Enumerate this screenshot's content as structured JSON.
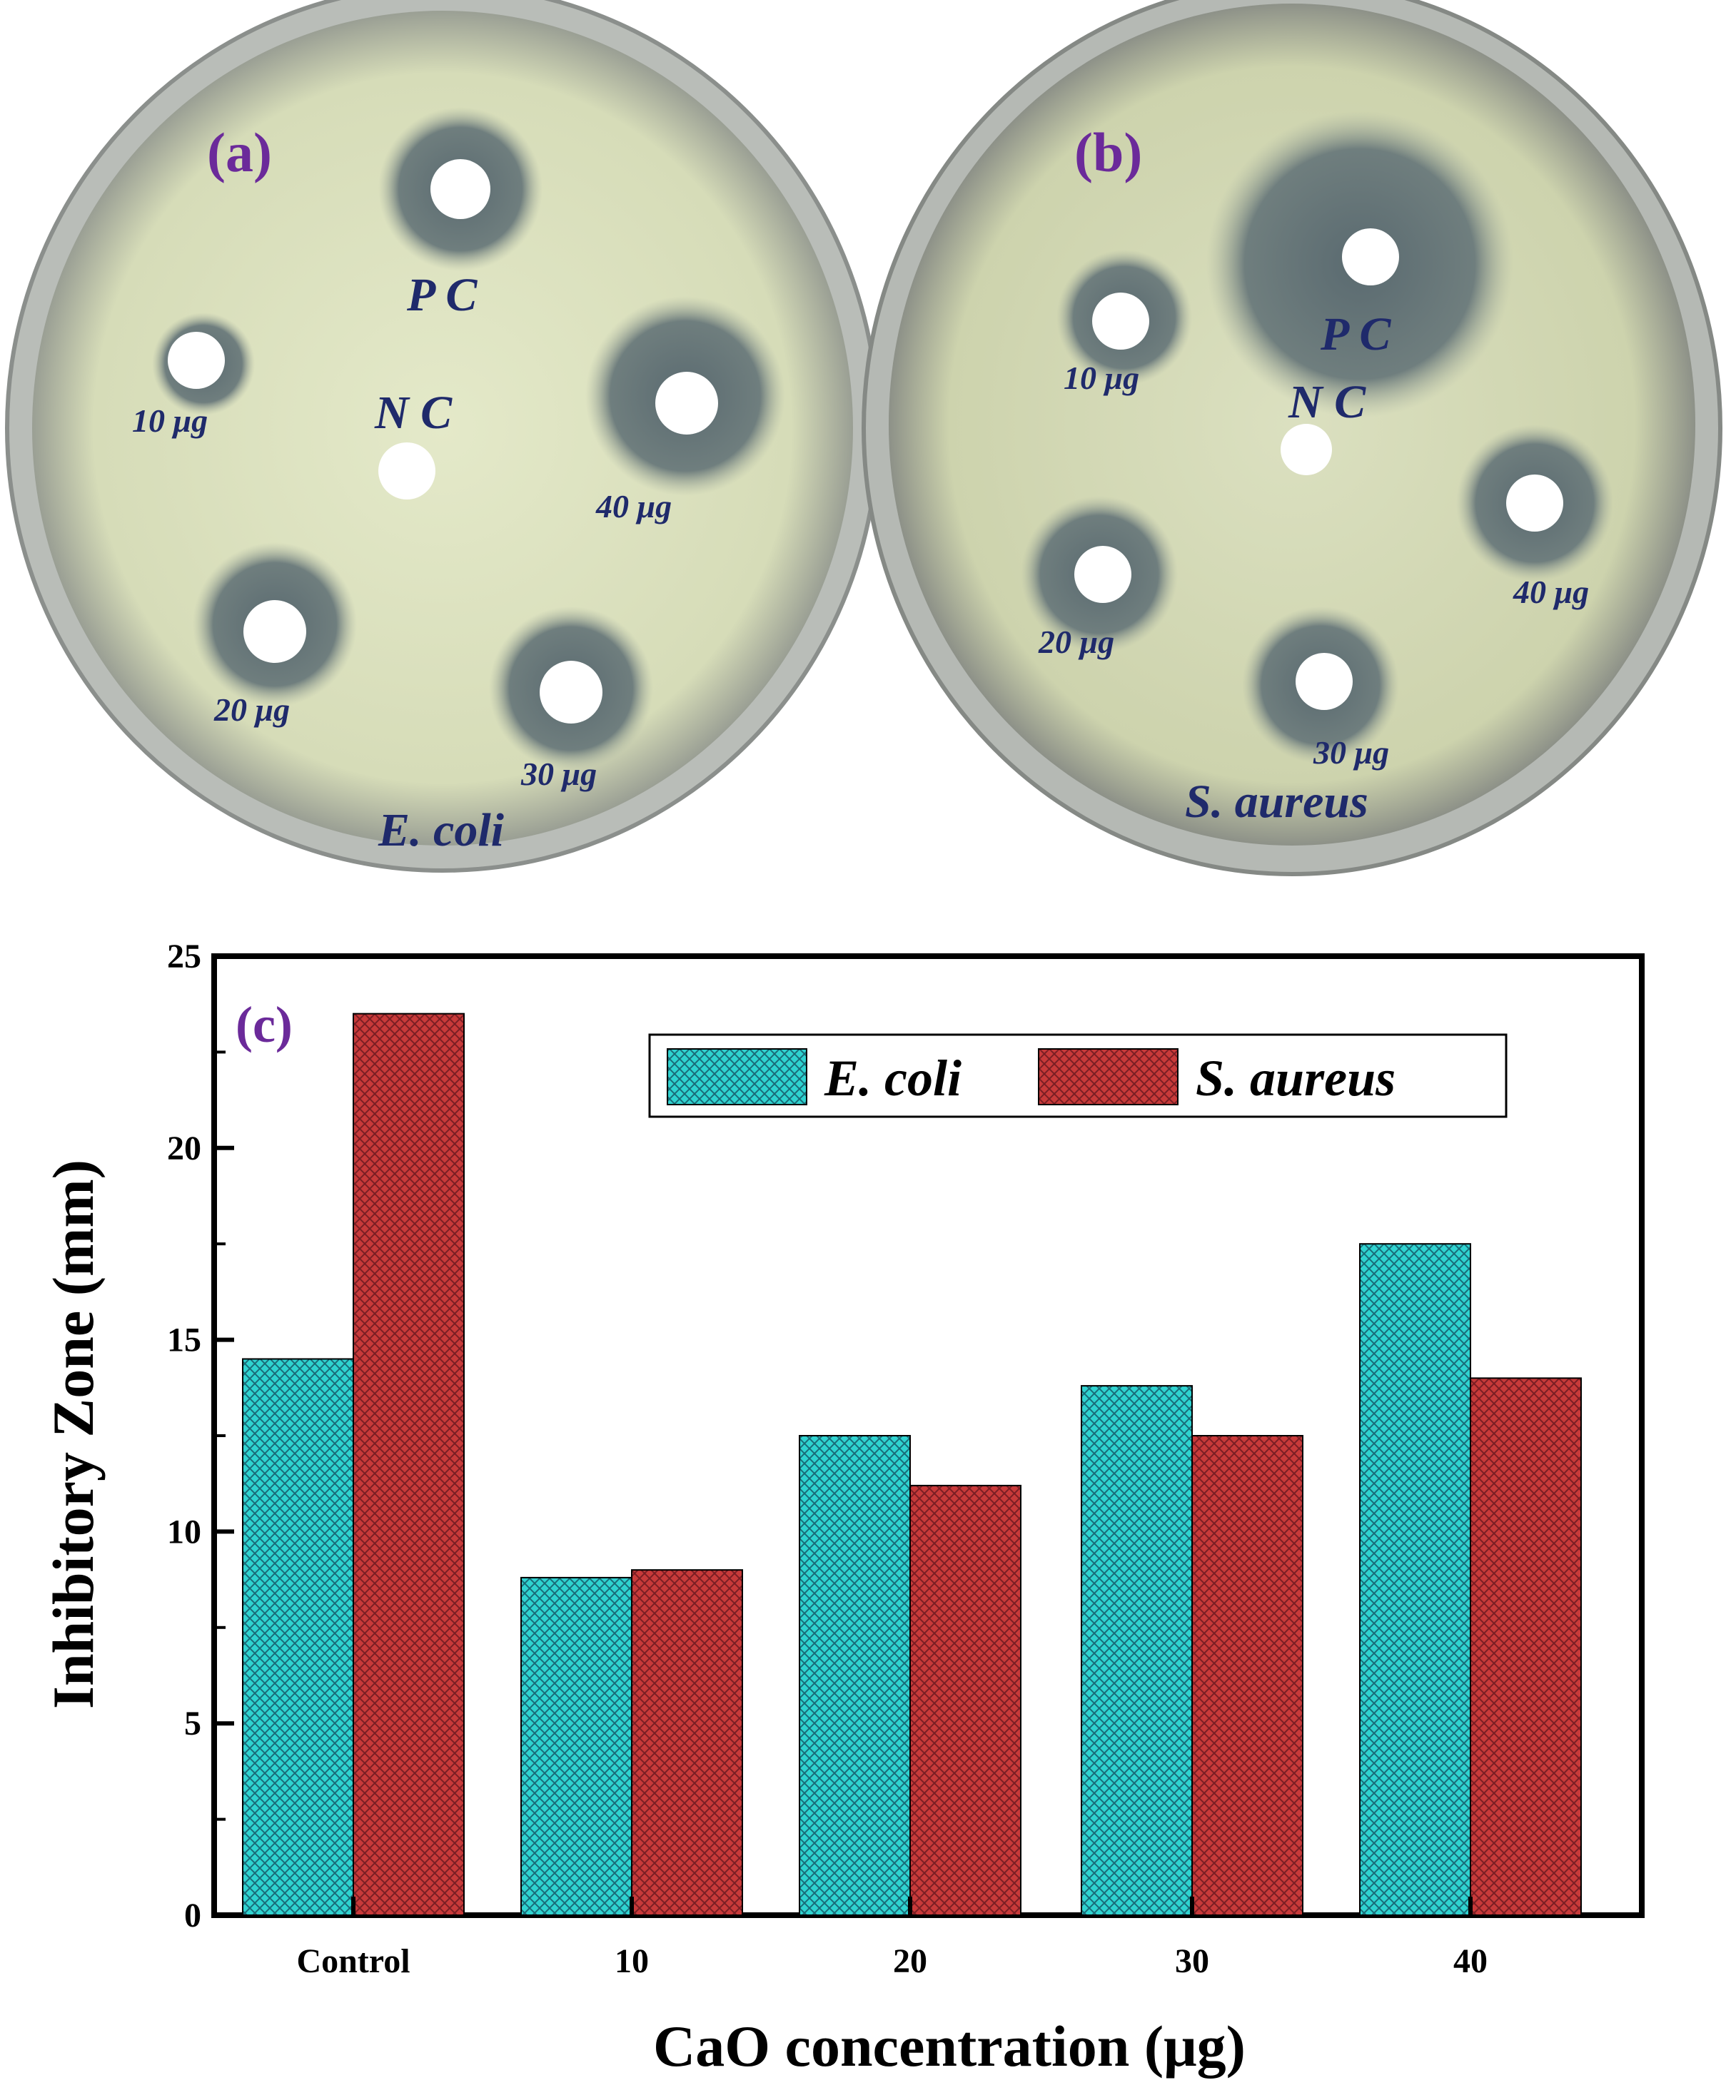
{
  "panels": {
    "a": {
      "letter": "(a)",
      "organism": "E. coli",
      "labels": {
        "pc": "P C",
        "nc": "N C",
        "d10": "10 μg",
        "d20": "20 μg",
        "d30": "30 μg",
        "d40": "40 μg"
      }
    },
    "b": {
      "letter": "(b)",
      "organism": "S. aureus",
      "labels": {
        "pc": "P C",
        "nc": "N C",
        "d10": "10 μg",
        "d20": "20 μg",
        "d30": "30 μg",
        "d40": "40 μg"
      }
    }
  },
  "chart_data": {
    "type": "bar",
    "panel_letter": "(c)",
    "categories": [
      "Control",
      "10",
      "20",
      "30",
      "40"
    ],
    "series": [
      {
        "name": "E. coli",
        "values": [
          14.5,
          8.8,
          12.5,
          13.8,
          17.5
        ]
      },
      {
        "name": "S. aureus",
        "values": [
          23.5,
          9.0,
          11.2,
          12.5,
          14.0
        ]
      }
    ],
    "xlabel": "CaO concentration (μg)",
    "ylabel": "Inhibitory Zone (mm)",
    "ylim": [
      0,
      25
    ],
    "yticks": [
      0,
      5,
      10,
      15,
      20,
      25
    ],
    "legend_position": "top-right",
    "colors": {
      "E. coli": "#2fd3d0",
      "S. aureus": "#c83a3a"
    },
    "grid": false
  }
}
